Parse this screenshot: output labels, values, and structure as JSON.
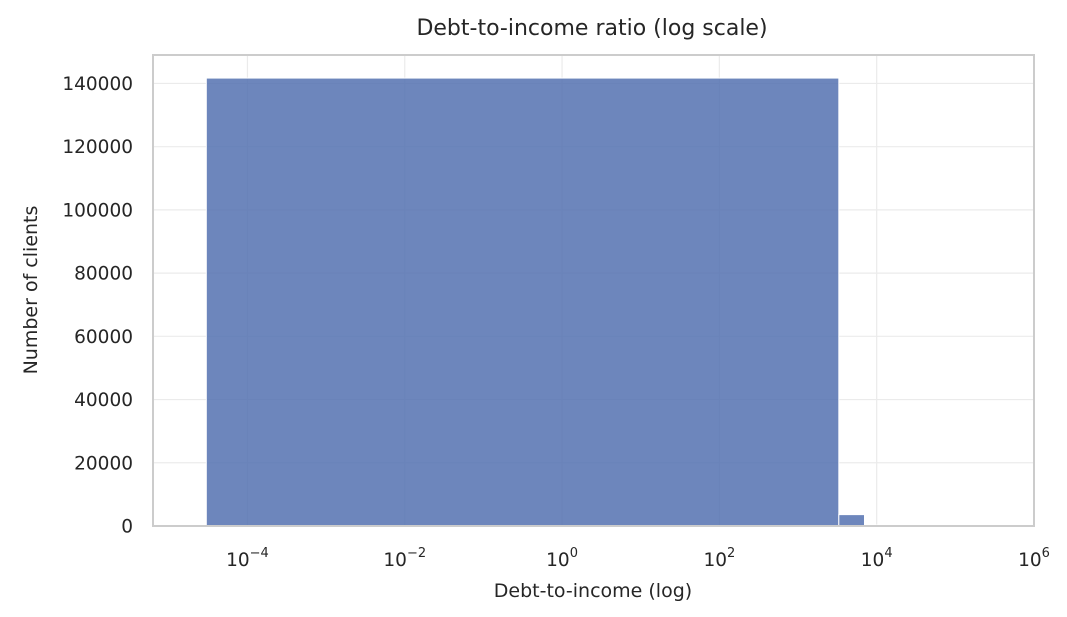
{
  "chart_data": {
    "type": "bar",
    "title": "Debt-to-income ratio (log scale)",
    "xlabel": "Debt-to-income (log)",
    "ylabel": "Number of clients",
    "x_scale": "log",
    "xlim": [
      6.3e-06,
      1000000
    ],
    "ylim": [
      0,
      149000
    ],
    "grid": true,
    "colors": {
      "bar": "#5471b0",
      "grid": "#ebebeb",
      "frame": "#cccccc",
      "text": "#262626"
    },
    "x_ticks": [
      {
        "base": "10",
        "exp": "−4",
        "value": 0.0001
      },
      {
        "base": "10",
        "exp": "−2",
        "value": 0.01
      },
      {
        "base": "10",
        "exp": "0",
        "value": 1
      },
      {
        "base": "10",
        "exp": "2",
        "value": 100
      },
      {
        "base": "10",
        "exp": "4",
        "value": 10000
      },
      {
        "base": "10",
        "exp": "6",
        "value": 1000000
      }
    ],
    "y_ticks": [
      "0",
      "20000",
      "40000",
      "60000",
      "80000",
      "100000",
      "120000",
      "140000"
    ],
    "y_tick_values": [
      0,
      20000,
      40000,
      60000,
      80000,
      100000,
      120000,
      140000
    ],
    "bins": [
      {
        "x0": 3e-05,
        "x1": 3300,
        "count": 141700
      },
      {
        "x0": 3300,
        "x1": 7000,
        "count": 3600
      },
      {
        "x0": 7000,
        "x1": 12000,
        "count": 300
      },
      {
        "x0": 12000,
        "x1": 470000,
        "count": 40
      }
    ]
  }
}
